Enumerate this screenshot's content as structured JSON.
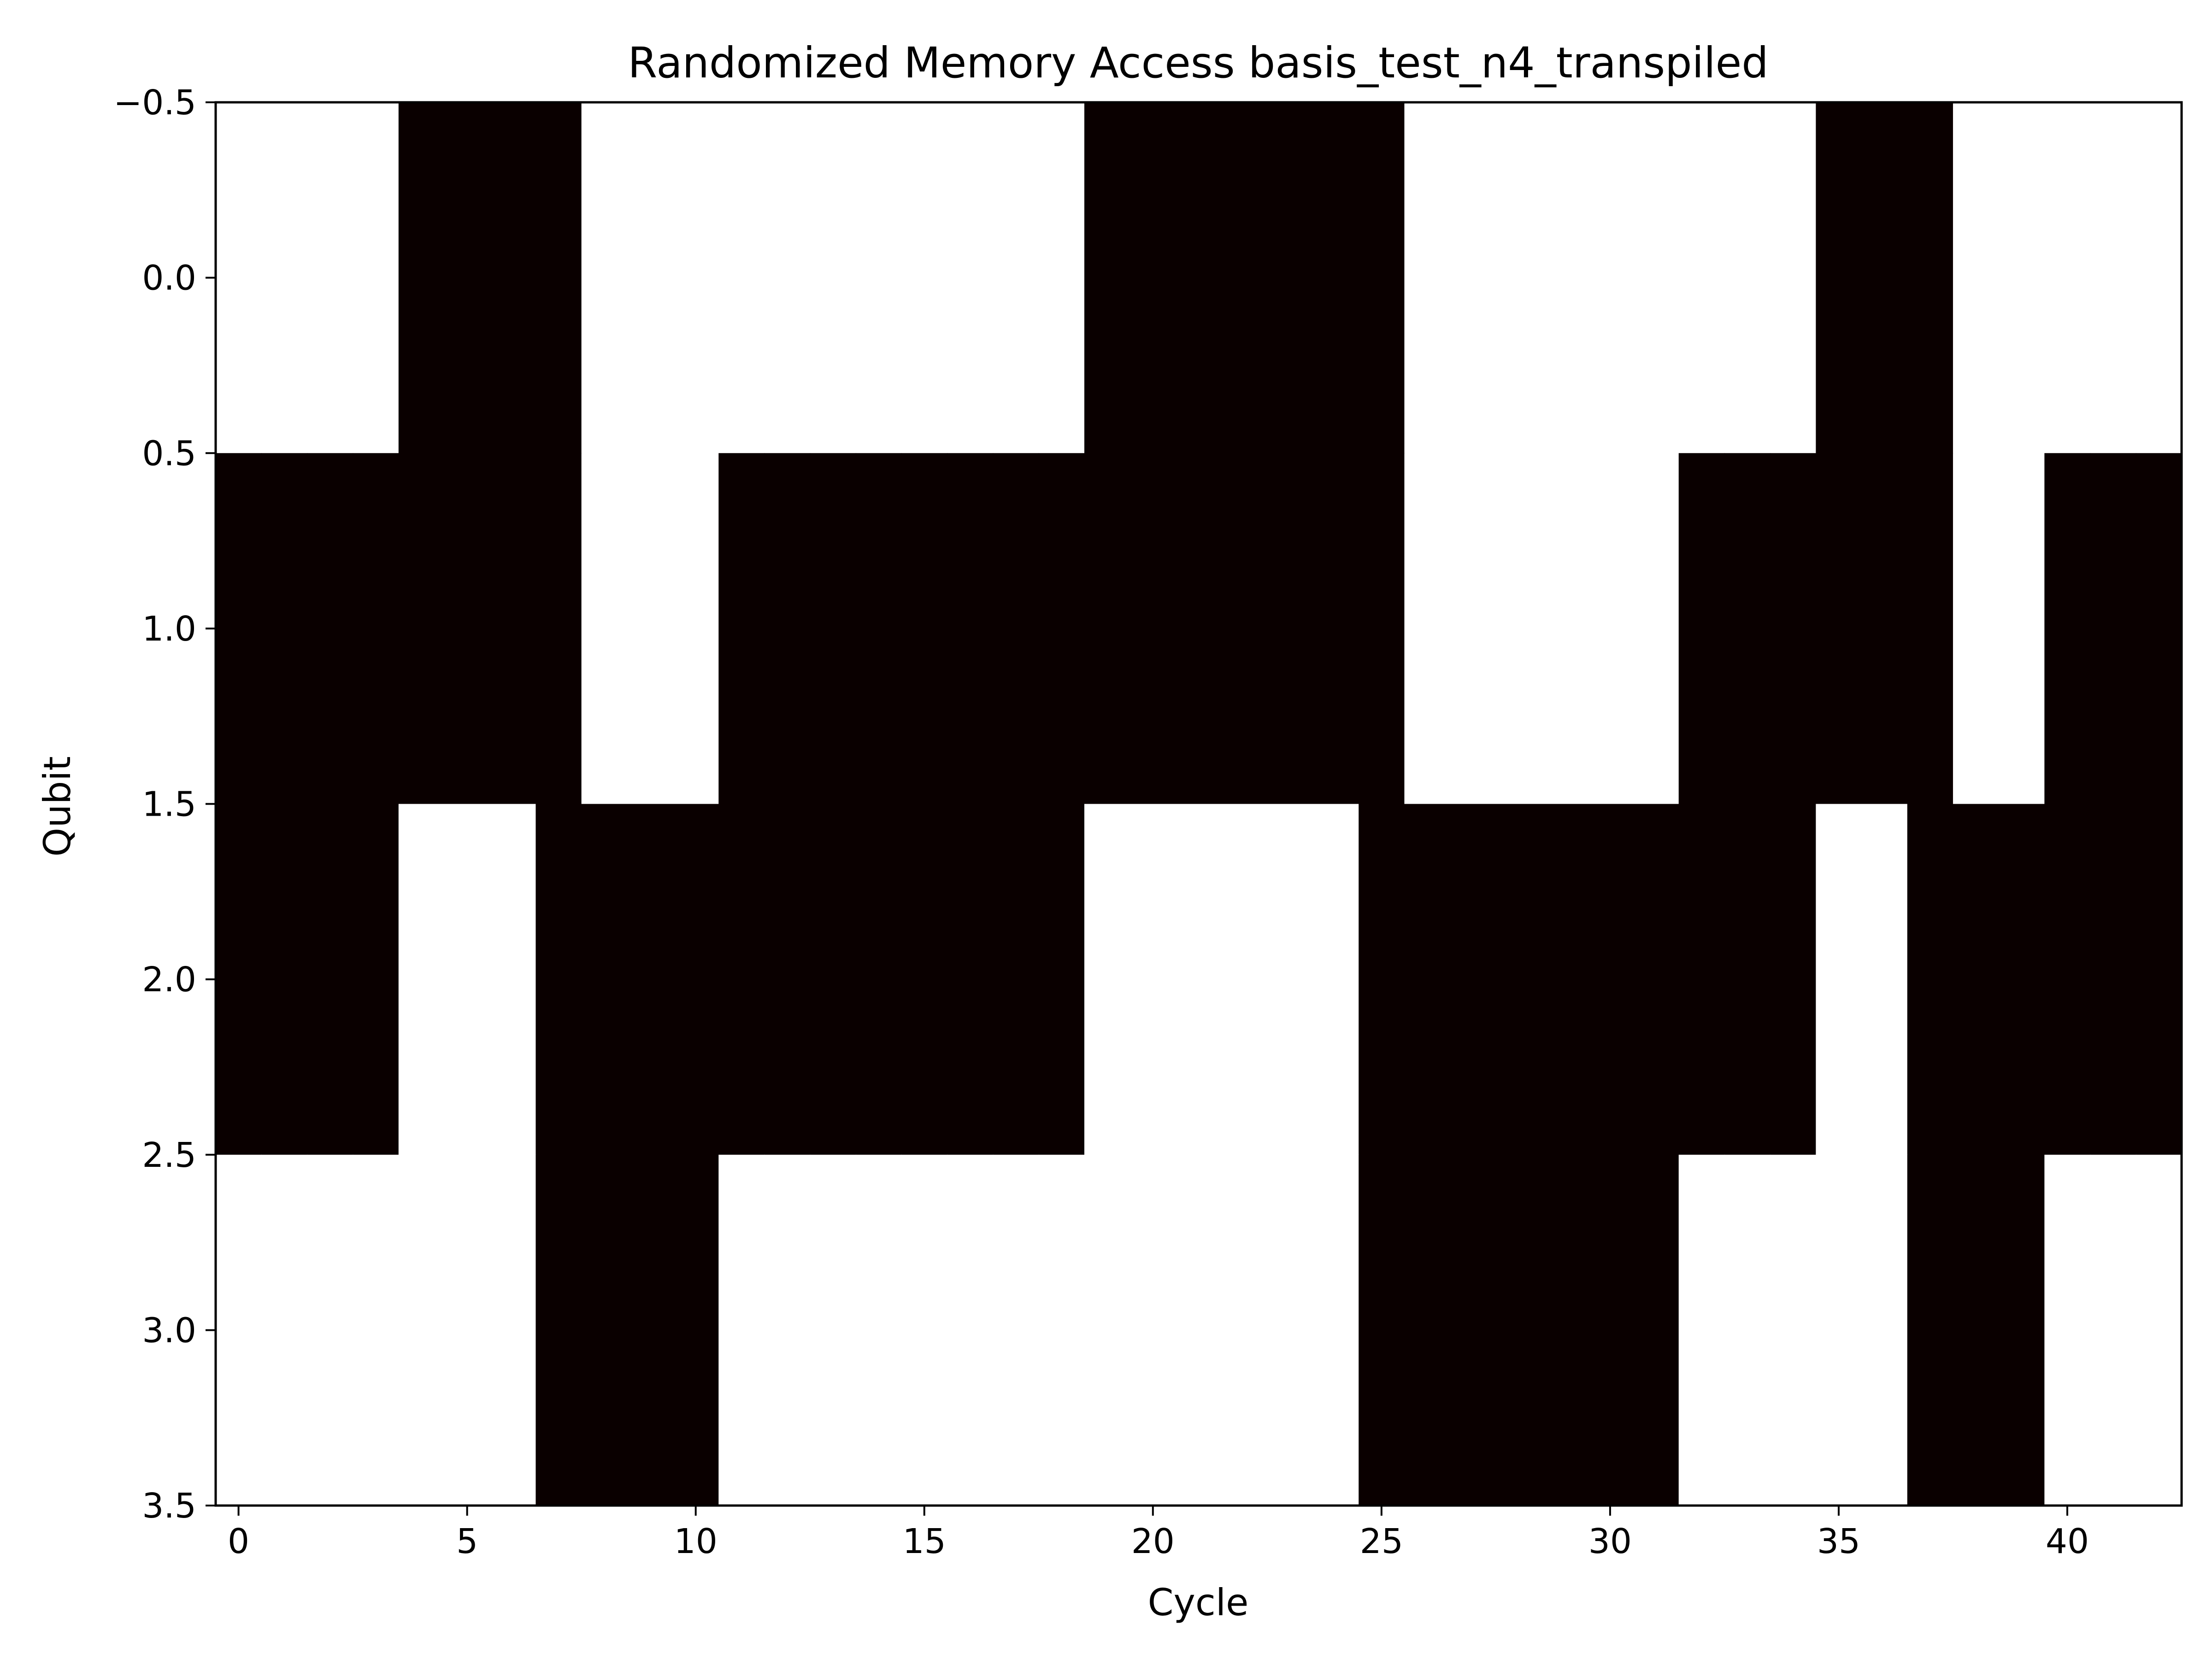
{
  "chart_data": {
    "type": "heatmap",
    "title": "Randomized Memory Access basis_test_n4_transpiled",
    "xlabel": "Cycle",
    "ylabel": "Qubit",
    "xlim": [
      -0.5,
      42.5
    ],
    "ylim": [
      3.5,
      -0.5
    ],
    "xticks": [
      0,
      5,
      10,
      15,
      20,
      25,
      30,
      35,
      40
    ],
    "xtick_labels": [
      "0",
      "5",
      "10",
      "15",
      "20",
      "25",
      "30",
      "35",
      "40"
    ],
    "yticks": [
      -0.5,
      0.0,
      0.5,
      1.0,
      1.5,
      2.0,
      2.5,
      3.0,
      3.5
    ],
    "ytick_labels": [
      "−0.5",
      "0.0",
      "0.5",
      "1.0",
      "1.5",
      "2.0",
      "2.5",
      "3.0",
      "3.5"
    ],
    "grid": false,
    "colormap": "hot",
    "colors": {
      "high": "#ffffff",
      "low": "#0a0000"
    },
    "rows": 4,
    "cols": 43,
    "values": [
      [
        1,
        1,
        1,
        1,
        0,
        0,
        0,
        0,
        1,
        1,
        1,
        1,
        1,
        1,
        1,
        1,
        1,
        1,
        1,
        0,
        0,
        0,
        0,
        0,
        0,
        0,
        1,
        1,
        1,
        1,
        1,
        1,
        1,
        1,
        1,
        0,
        0,
        0,
        1,
        1,
        1,
        1,
        1
      ],
      [
        0,
        0,
        0,
        0,
        0,
        0,
        0,
        0,
        1,
        1,
        1,
        0,
        0,
        0,
        0,
        0,
        0,
        0,
        0,
        0,
        0,
        0,
        0,
        0,
        0,
        0,
        1,
        1,
        1,
        1,
        1,
        1,
        0,
        0,
        0,
        0,
        0,
        0,
        1,
        1,
        0,
        0,
        0
      ],
      [
        0,
        0,
        0,
        0,
        1,
        1,
        1,
        0,
        0,
        0,
        0,
        0,
        0,
        0,
        0,
        0,
        0,
        0,
        0,
        1,
        1,
        1,
        1,
        1,
        1,
        0,
        0,
        0,
        0,
        0,
        0,
        0,
        0,
        0,
        0,
        1,
        1,
        0,
        0,
        0,
        0,
        0,
        0
      ],
      [
        1,
        1,
        1,
        1,
        1,
        1,
        1,
        0,
        0,
        0,
        0,
        1,
        1,
        1,
        1,
        1,
        1,
        1,
        1,
        1,
        1,
        1,
        1,
        1,
        1,
        0,
        0,
        0,
        0,
        0,
        0,
        0,
        1,
        1,
        1,
        1,
        1,
        0,
        0,
        0,
        1,
        1,
        1
      ]
    ]
  }
}
